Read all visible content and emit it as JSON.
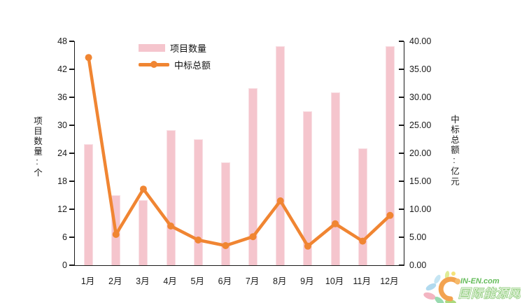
{
  "watermark": {
    "brand": "IN-EN.com",
    "site_name": "国际能源网"
  },
  "chart_data": {
    "type": "bar",
    "subtype": "combo-bar-line",
    "categories": [
      "1月",
      "2月",
      "3月",
      "4月",
      "5月",
      "6月",
      "7月",
      "8月",
      "9月",
      "10月",
      "11月",
      "12月"
    ],
    "series": [
      {
        "name": "项目数量",
        "type": "bar",
        "axis": "left",
        "color": "#f5c5cd",
        "values": [
          26,
          15,
          14,
          29,
          27,
          22,
          38,
          47,
          33,
          37,
          25,
          47
        ]
      },
      {
        "name": "中标总额",
        "type": "line",
        "axis": "right",
        "color": "#f08532",
        "values": [
          37.1,
          5.5,
          13.6,
          7.0,
          4.5,
          3.5,
          5.1,
          11.5,
          3.4,
          7.4,
          4.3,
          8.9
        ]
      }
    ],
    "left_axis": {
      "title": "项目数量:个",
      "min": 0,
      "max": 48,
      "step": 6,
      "ticks": [
        "0",
        "6",
        "12",
        "18",
        "24",
        "30",
        "36",
        "42",
        "48"
      ]
    },
    "right_axis": {
      "title": "中标总额:亿元",
      "min": 0,
      "max": 40,
      "step": 5,
      "ticks": [
        "0.00",
        "5.00",
        "10.00",
        "15.00",
        "20.00",
        "25.00",
        "30.00",
        "35.00",
        "40.00"
      ]
    },
    "legend": {
      "items": [
        "项目数量",
        "中标总额"
      ],
      "position": "top-center"
    },
    "grid": false,
    "background": "#ffffff"
  }
}
